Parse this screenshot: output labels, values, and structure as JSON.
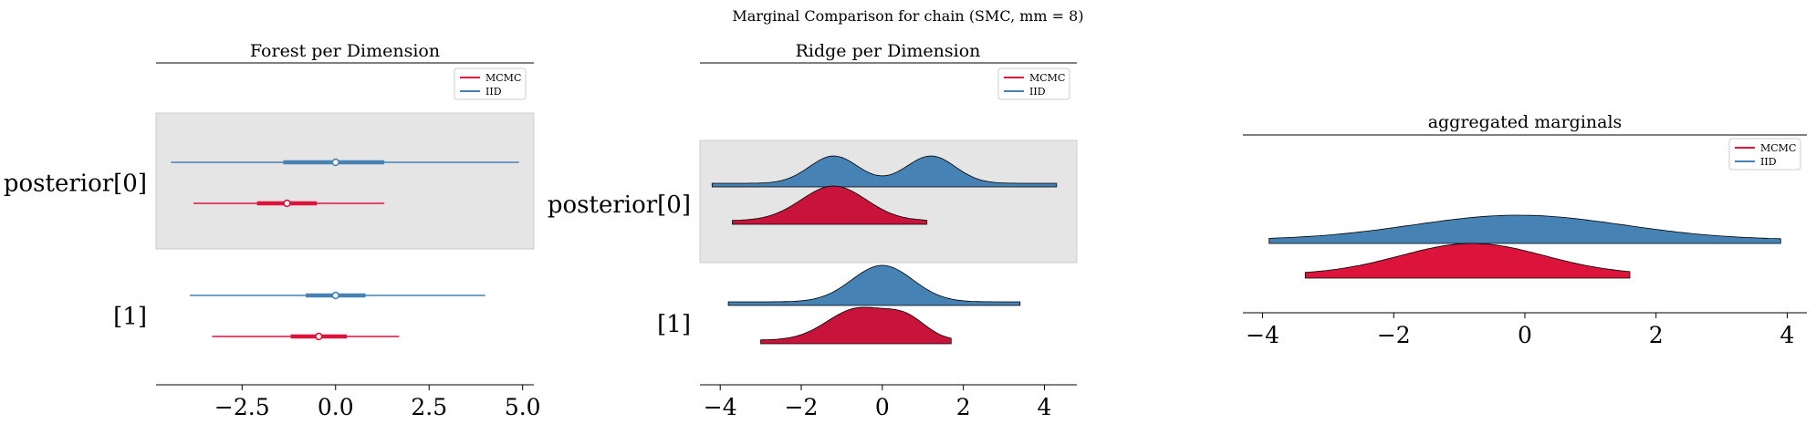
{
  "figure": {
    "suptitle": "Marginal Comparison for chain (SMC, mm = 8)"
  },
  "colors": {
    "mcmc": "#dc143c",
    "mcmc_ridge": "#c8143a",
    "iid": "#4682b4",
    "band": "#e5e5e5"
  },
  "legend": {
    "entries": [
      {
        "name": "MCMC",
        "color": "#dc143c"
      },
      {
        "name": "IID",
        "color": "#4682b4"
      }
    ]
  },
  "chart_data": [
    {
      "type": "forest",
      "title": "Forest per Dimension",
      "xlim": [
        -4.8,
        5.3
      ],
      "xticks": [
        -2.5,
        0.0,
        2.5,
        5.0
      ],
      "xtick_labels": [
        "−2.5",
        "0.0",
        "2.5",
        "5.0"
      ],
      "rows": [
        {
          "label": "posterior[0]",
          "shaded": true,
          "series": [
            {
              "name": "IID",
              "hdi": [
                -4.4,
                4.9
              ],
              "iqr": [
                -1.4,
                1.3
              ],
              "mean": 0.0
            },
            {
              "name": "MCMC",
              "hdi": [
                -3.8,
                1.3
              ],
              "iqr": [
                -2.1,
                -0.5
              ],
              "mean": -1.3
            }
          ]
        },
        {
          "label": "[1]",
          "shaded": false,
          "series": [
            {
              "name": "IID",
              "hdi": [
                -3.9,
                4.0
              ],
              "iqr": [
                -0.8,
                0.8
              ],
              "mean": 0.0
            },
            {
              "name": "MCMC",
              "hdi": [
                -3.3,
                1.7
              ],
              "iqr": [
                -1.2,
                0.3
              ],
              "mean": -0.45
            }
          ]
        }
      ],
      "legend": "top-right"
    },
    {
      "type": "ridgeplot",
      "title": "Ridge per Dimension",
      "xlim": [
        -4.5,
        4.8
      ],
      "xticks": [
        -4,
        -2,
        0,
        2,
        4
      ],
      "xtick_labels": [
        "−4",
        "−2",
        "0",
        "2",
        "4"
      ],
      "rows": [
        {
          "label": "posterior[0]",
          "shaded": true,
          "series": [
            {
              "name": "IID",
              "range": [
                -4.2,
                4.3
              ],
              "peaks": [
                [
                  -1.2,
                  0.6,
                  1.0
                ],
                [
                  1.2,
                  0.6,
                  1.0
                ]
              ]
            },
            {
              "name": "MCMC",
              "range": [
                -3.7,
                1.1
              ],
              "peaks": [
                [
                  -1.2,
                  0.8,
                  1.0
                ]
              ]
            }
          ]
        },
        {
          "label": "[1]",
          "shaded": false,
          "series": [
            {
              "name": "IID",
              "range": [
                -3.8,
                3.4
              ],
              "peaks": [
                [
                  0.0,
                  0.75,
                  1.0
                ]
              ]
            },
            {
              "name": "MCMC",
              "range": [
                -3.0,
                1.7
              ],
              "peaks": [
                [
                  -0.6,
                  0.75,
                  0.85
                ],
                [
                  0.6,
                  0.5,
                  0.5
                ]
              ]
            }
          ]
        }
      ],
      "legend": "top-right"
    },
    {
      "type": "area",
      "title": "aggregated marginals",
      "xlim": [
        -4.3,
        4.3
      ],
      "xticks": [
        -4,
        -2,
        0,
        2,
        4
      ],
      "xtick_labels": [
        "−4",
        "−2",
        "0",
        "2",
        "4"
      ],
      "series": [
        {
          "name": "IID",
          "range": [
            -3.9,
            3.9
          ],
          "peaks": [
            [
              -0.1,
              1.6,
              1.0
            ]
          ]
        },
        {
          "name": "MCMC",
          "range": [
            -3.35,
            1.6
          ],
          "peaks": [
            [
              -0.8,
              1.1,
              1.0
            ]
          ]
        }
      ],
      "legend": "top-right"
    }
  ]
}
